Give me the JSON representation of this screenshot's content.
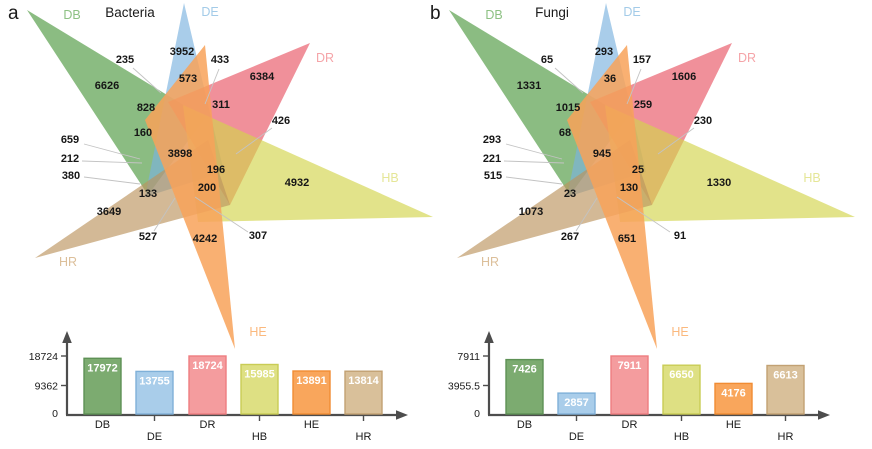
{
  "panels": [
    {
      "letter": "a",
      "title": "Bacteria",
      "set_labels": [
        "DB",
        "DE",
        "DR",
        "HB",
        "HE",
        "HR"
      ],
      "venn_values": [
        "235",
        "3952",
        "433",
        "6626",
        "573",
        "6384",
        "828",
        "311",
        "426",
        "160",
        "659",
        "212",
        "380",
        "3898",
        "196",
        "200",
        "133",
        "4932",
        "3649",
        "527",
        "4242",
        "307"
      ],
      "chart_data": {
        "type": "bar",
        "categories": [
          "DB",
          "DE",
          "DR",
          "HB",
          "HE",
          "HR"
        ],
        "values": [
          17972,
          13755,
          18724,
          15985,
          13891,
          13814
        ],
        "yticks": [
          0,
          9362,
          18724
        ],
        "ylim": [
          0,
          18724
        ],
        "title": "",
        "xlabel": "",
        "ylabel": "",
        "grid": false,
        "legend": false
      }
    },
    {
      "letter": "b",
      "title": "Fungi",
      "set_labels": [
        "DB",
        "DE",
        "DR",
        "HB",
        "HE",
        "HR"
      ],
      "venn_values": [
        "65",
        "293",
        "157",
        "1331",
        "36",
        "1606",
        "1015",
        "259",
        "230",
        "68",
        "293",
        "221",
        "515",
        "945",
        "25",
        "130",
        "23",
        "1330",
        "1073",
        "267",
        "651",
        "91"
      ],
      "chart_data": {
        "type": "bar",
        "categories": [
          "DB",
          "DE",
          "DR",
          "HB",
          "HE",
          "HR"
        ],
        "values": [
          7426,
          2857,
          7911,
          6650,
          4176,
          6613
        ],
        "yticks": [
          0,
          3955.5,
          7911
        ],
        "ylim": [
          0,
          7911
        ],
        "title": "",
        "xlabel": "",
        "ylabel": "",
        "grid": false,
        "legend": false
      }
    }
  ],
  "colors": {
    "DB": {
      "triangle": "#4d983f",
      "bar_fill": "#7cab70",
      "bar_stroke": "#5e9155",
      "label_text": "#8dc183"
    },
    "DE": {
      "triangle": "#7bb2df",
      "bar_fill": "#a9cdea",
      "bar_stroke": "#7fb0d8",
      "label_text": "#a3cbe8"
    },
    "DR": {
      "triangle": "#e85564",
      "bar_fill": "#f49c9e",
      "bar_stroke": "#ee7d80",
      "label_text": "#f5a4a8"
    },
    "HB": {
      "triangle": "#d3d44b",
      "bar_fill": "#dee083",
      "bar_stroke": "#c9cc55",
      "label_text": "#e5e697"
    },
    "HE": {
      "triangle": "#f8a259",
      "bar_fill": "#f9a65c",
      "bar_stroke": "#f18c33",
      "label_text": "#fbb97e"
    },
    "HR": {
      "triangle": "#bc945e",
      "bar_fill": "#d9c09a",
      "bar_stroke": "#c2a173",
      "label_text": "#dcbf9a"
    }
  }
}
